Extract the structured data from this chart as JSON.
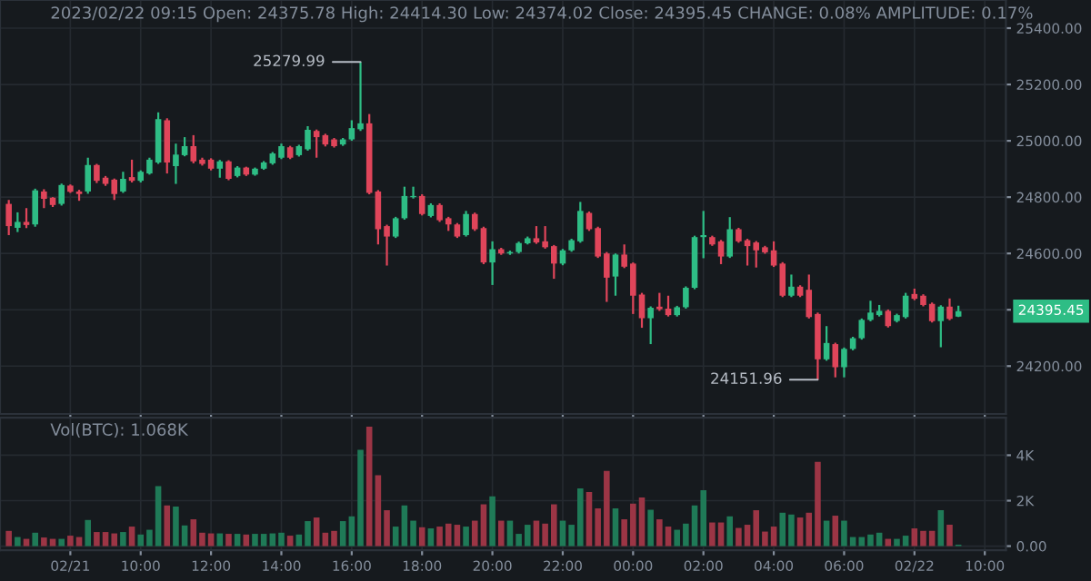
{
  "chart_data": [
    {
      "type": "candlestick",
      "title": "2023/02/22 09:15 Open: 24375.78 High: 24414.30 Low: 24374.02 Close: 24395.45 CHANGE: 0.08% AMPLITUDE: 0.17%",
      "x": [
        "2023-02-21T06:15",
        "2023-02-21T06:30",
        "2023-02-21T06:45",
        "2023-02-21T07:00",
        "2023-02-21T07:15",
        "2023-02-21T07:30",
        "2023-02-21T07:45",
        "2023-02-21T08:00",
        "2023-02-21T08:15",
        "2023-02-21T08:30",
        "2023-02-21T08:45",
        "2023-02-21T09:00",
        "2023-02-21T09:15",
        "2023-02-21T09:30",
        "2023-02-21T09:45",
        "2023-02-21T10:00",
        "2023-02-21T10:15",
        "2023-02-21T10:30",
        "2023-02-21T10:45",
        "2023-02-21T11:00",
        "2023-02-21T11:15",
        "2023-02-21T11:30",
        "2023-02-21T11:45",
        "2023-02-21T12:00",
        "2023-02-21T12:15",
        "2023-02-21T12:30",
        "2023-02-21T12:45",
        "2023-02-21T13:00",
        "2023-02-21T13:15",
        "2023-02-21T13:30",
        "2023-02-21T13:45",
        "2023-02-21T14:00",
        "2023-02-21T14:15",
        "2023-02-21T14:30",
        "2023-02-21T14:45",
        "2023-02-21T15:00",
        "2023-02-21T15:15",
        "2023-02-21T15:30",
        "2023-02-21T15:45",
        "2023-02-21T16:00",
        "2023-02-21T16:15",
        "2023-02-21T16:30",
        "2023-02-21T16:45",
        "2023-02-21T17:00",
        "2023-02-21T17:15",
        "2023-02-21T17:30",
        "2023-02-21T17:45",
        "2023-02-21T18:00",
        "2023-02-21T18:15",
        "2023-02-21T18:30",
        "2023-02-21T18:45",
        "2023-02-21T19:00",
        "2023-02-21T19:15",
        "2023-02-21T19:30",
        "2023-02-21T19:45",
        "2023-02-21T20:00",
        "2023-02-21T20:15",
        "2023-02-21T20:30",
        "2023-02-21T20:45",
        "2023-02-21T21:00",
        "2023-02-21T21:15",
        "2023-02-21T21:30",
        "2023-02-21T21:45",
        "2023-02-21T22:00",
        "2023-02-21T22:15",
        "2023-02-21T22:30",
        "2023-02-21T22:45",
        "2023-02-21T23:00",
        "2023-02-21T23:15",
        "2023-02-21T23:30",
        "2023-02-21T23:45",
        "2023-02-22T00:00",
        "2023-02-22T00:15",
        "2023-02-22T00:30",
        "2023-02-22T00:45",
        "2023-02-22T01:00",
        "2023-02-22T01:15",
        "2023-02-22T01:30",
        "2023-02-22T01:45",
        "2023-02-22T02:00",
        "2023-02-22T02:15",
        "2023-02-22T02:30",
        "2023-02-22T02:45",
        "2023-02-22T03:00",
        "2023-02-22T03:15",
        "2023-02-22T03:30",
        "2023-02-22T03:45",
        "2023-02-22T04:00",
        "2023-02-22T04:15",
        "2023-02-22T04:30",
        "2023-02-22T04:45",
        "2023-02-22T05:00",
        "2023-02-22T05:15",
        "2023-02-22T05:30",
        "2023-02-22T05:45",
        "2023-02-22T06:00",
        "2023-02-22T06:15",
        "2023-02-22T06:30",
        "2023-02-22T06:45",
        "2023-02-22T07:00",
        "2023-02-22T07:15",
        "2023-02-22T07:30",
        "2023-02-22T07:45",
        "2023-02-22T08:00",
        "2023-02-22T08:15",
        "2023-02-22T08:30",
        "2023-02-22T08:45",
        "2023-02-22T09:00",
        "2023-02-22T09:15"
      ],
      "ohlc": [
        [
          24776,
          24790,
          24665,
          24697
        ],
        [
          24691,
          24746,
          24676,
          24712
        ],
        [
          24712,
          24761,
          24690,
          24701
        ],
        [
          24703,
          24830,
          24695,
          24824
        ],
        [
          24820,
          24828,
          24761,
          24794
        ],
        [
          24798,
          24800,
          24765,
          24772
        ],
        [
          24776,
          24848,
          24770,
          24843
        ],
        [
          24841,
          24845,
          24815,
          24819
        ],
        [
          24820,
          24826,
          24787,
          24811
        ],
        [
          24820,
          24940,
          24812,
          24914
        ],
        [
          24914,
          24918,
          24850,
          24858
        ],
        [
          24869,
          24875,
          24840,
          24847
        ],
        [
          24862,
          24866,
          24790,
          24811
        ],
        [
          24820,
          24890,
          24815,
          24865
        ],
        [
          24871,
          24933,
          24852,
          24858
        ],
        [
          24858,
          24895,
          24852,
          24890
        ],
        [
          24884,
          24940,
          24880,
          24933
        ],
        [
          24923,
          25101,
          24918,
          25077
        ],
        [
          25073,
          25080,
          24884,
          24923
        ],
        [
          24910,
          24990,
          24847,
          24951
        ],
        [
          24949,
          25013,
          24945,
          24981
        ],
        [
          24981,
          25020,
          24920,
          24927
        ],
        [
          24933,
          24940,
          24912,
          24918
        ],
        [
          24933,
          24938,
          24895,
          24901
        ],
        [
          24901,
          24932,
          24869,
          24927
        ],
        [
          24927,
          24931,
          24860,
          24865
        ],
        [
          24875,
          24910,
          24870,
          24905
        ],
        [
          24905,
          24908,
          24875,
          24880
        ],
        [
          24880,
          24905,
          24876,
          24901
        ],
        [
          24901,
          24928,
          24897,
          24923
        ],
        [
          24920,
          24960,
          24915,
          24955
        ],
        [
          24940,
          24990,
          24935,
          24981
        ],
        [
          24977,
          24982,
          24935,
          24940
        ],
        [
          24949,
          24986,
          24944,
          24981
        ],
        [
          24970,
          25052,
          24965,
          25039
        ],
        [
          25035,
          25040,
          24940,
          25013
        ],
        [
          25020,
          25025,
          24980,
          24987
        ],
        [
          25005,
          25010,
          24976,
          24981
        ],
        [
          24987,
          25010,
          24982,
          25005
        ],
        [
          25005,
          25073,
          25000,
          25045
        ],
        [
          25041,
          25279.99,
          25035,
          25062
        ],
        [
          25062,
          25095,
          24810,
          24815
        ],
        [
          24820,
          24825,
          24632,
          24686
        ],
        [
          24697,
          24702,
          24557,
          24660
        ],
        [
          24660,
          24730,
          24655,
          24725
        ],
        [
          24725,
          24837,
          24720,
          24804
        ],
        [
          24800,
          24837,
          24795,
          24804
        ],
        [
          24804,
          24810,
          24735,
          24740
        ],
        [
          24733,
          24778,
          24728,
          24772
        ],
        [
          24772,
          24778,
          24712,
          24718
        ],
        [
          24725,
          24730,
          24680,
          24703
        ],
        [
          24703,
          24708,
          24655,
          24660
        ],
        [
          24665,
          24751,
          24660,
          24740
        ],
        [
          24740,
          24745,
          24680,
          24686
        ],
        [
          24690,
          24695,
          24562,
          24568
        ],
        [
          24568,
          24643,
          24488,
          24615
        ],
        [
          24615,
          24620,
          24595,
          24600
        ],
        [
          24600,
          24610,
          24595,
          24605
        ],
        [
          24605,
          24642,
          24600,
          24637
        ],
        [
          24636,
          24660,
          24632,
          24654
        ],
        [
          24654,
          24697,
          24634,
          24639
        ],
        [
          24643,
          24697,
          24617,
          24622
        ],
        [
          24626,
          24630,
          24510,
          24564
        ],
        [
          24564,
          24616,
          24558,
          24611
        ],
        [
          24611,
          24652,
          24606,
          24647
        ],
        [
          24643,
          24783,
          24638,
          24751
        ],
        [
          24744,
          24749,
          24680,
          24686
        ],
        [
          24690,
          24695,
          24584,
          24589
        ],
        [
          24600,
          24605,
          24428,
          24514
        ],
        [
          24518,
          24600,
          24450,
          24596
        ],
        [
          24596,
          24632,
          24548,
          24553
        ],
        [
          24564,
          24568,
          24385,
          24450
        ],
        [
          24454,
          24460,
          24336,
          24370
        ],
        [
          24370,
          24412,
          24278,
          24407
        ],
        [
          24411,
          24460,
          24396,
          24402
        ],
        [
          24404,
          24450,
          24376,
          24381
        ],
        [
          24381,
          24414,
          24376,
          24409
        ],
        [
          24409,
          24483,
          24404,
          24478
        ],
        [
          24478,
          24663,
          24473,
          24658
        ],
        [
          24658,
          24751,
          24583,
          24665
        ],
        [
          24658,
          24663,
          24627,
          24632
        ],
        [
          24643,
          24648,
          24562,
          24589
        ],
        [
          24589,
          24729,
          24584,
          24686
        ],
        [
          24686,
          24691,
          24638,
          24643
        ],
        [
          24647,
          24652,
          24557,
          24626
        ],
        [
          24639,
          24644,
          24550,
          24611
        ],
        [
          24622,
          24627,
          24599,
          24604
        ],
        [
          24611,
          24643,
          24552,
          24557
        ],
        [
          24564,
          24569,
          24445,
          24450
        ],
        [
          24450,
          24525,
          24445,
          24482
        ],
        [
          24482,
          24487,
          24445,
          24450
        ],
        [
          24471,
          24525,
          24369,
          24374
        ],
        [
          24385,
          24390,
          24151.96,
          24224
        ],
        [
          24224,
          24342,
          24219,
          24282
        ],
        [
          24278,
          24283,
          24160,
          24196
        ],
        [
          24196,
          24266,
          24160,
          24261
        ],
        [
          24261,
          24304,
          24256,
          24299
        ],
        [
          24299,
          24369,
          24294,
          24364
        ],
        [
          24364,
          24432,
          24359,
          24390
        ],
        [
          24381,
          24417,
          24376,
          24396
        ],
        [
          24396,
          24401,
          24337,
          24342
        ],
        [
          24360,
          24386,
          24355,
          24381
        ],
        [
          24374,
          24460,
          24369,
          24450
        ],
        [
          24456,
          24475,
          24434,
          24439
        ],
        [
          24450,
          24455,
          24412,
          24417
        ],
        [
          24421,
          24426,
          24355,
          24360
        ],
        [
          24360,
          24416,
          24267,
          24411
        ],
        [
          24411,
          24440,
          24363,
          24368
        ],
        [
          24375.78,
          24414.3,
          24374.02,
          24395.45
        ]
      ],
      "colors": [
        "#e0455a",
        "#2ebd85",
        "#e0455a",
        "#2ebd85",
        "#e0455a",
        "#e0455a",
        "#2ebd85",
        "#e0455a",
        "#e0455a",
        "#2ebd85",
        "#e0455a",
        "#e0455a",
        "#e0455a",
        "#2ebd85",
        "#e0455a",
        "#2ebd85",
        "#2ebd85",
        "#2ebd85",
        "#e0455a",
        "#2ebd85",
        "#2ebd85",
        "#e0455a",
        "#e0455a",
        "#e0455a",
        "#2ebd85",
        "#e0455a",
        "#2ebd85",
        "#e0455a",
        "#2ebd85",
        "#2ebd85",
        "#2ebd85",
        "#2ebd85",
        "#e0455a",
        "#2ebd85",
        "#2ebd85",
        "#e0455a",
        "#e0455a",
        "#e0455a",
        "#2ebd85",
        "#2ebd85",
        "#2ebd85",
        "#e0455a",
        "#e0455a",
        "#e0455a",
        "#2ebd85",
        "#2ebd85",
        "#2ebd85",
        "#e0455a",
        "#2ebd85",
        "#e0455a",
        "#e0455a",
        "#e0455a",
        "#2ebd85",
        "#e0455a",
        "#e0455a",
        "#2ebd85",
        "#e0455a",
        "#2ebd85",
        "#2ebd85",
        "#2ebd85",
        "#e0455a",
        "#e0455a",
        "#e0455a",
        "#2ebd85",
        "#2ebd85",
        "#2ebd85",
        "#e0455a",
        "#e0455a",
        "#e0455a",
        "#2ebd85",
        "#e0455a",
        "#e0455a",
        "#e0455a",
        "#2ebd85",
        "#e0455a",
        "#e0455a",
        "#2ebd85",
        "#2ebd85",
        "#2ebd85",
        "#2ebd85",
        "#e0455a",
        "#e0455a",
        "#2ebd85",
        "#e0455a",
        "#e0455a",
        "#e0455a",
        "#e0455a",
        "#e0455a",
        "#e0455a",
        "#2ebd85",
        "#e0455a",
        "#e0455a",
        "#e0455a",
        "#2ebd85",
        "#e0455a",
        "#2ebd85",
        "#2ebd85",
        "#2ebd85",
        "#2ebd85",
        "#2ebd85",
        "#e0455a",
        "#2ebd85",
        "#2ebd85",
        "#e0455a",
        "#e0455a",
        "#e0455a",
        "#2ebd85",
        "#e0455a",
        "#2ebd85"
      ],
      "annotations": [
        {
          "text": "25279.99",
          "x": "2023-02-21T16:15",
          "y": 25279.99
        },
        {
          "text": "24151.96",
          "x": "2023-02-22T05:15",
          "y": 24151.96
        },
        "24395.45"
      ],
      "xlim": [
        "2023-02-21T06:00",
        "2023-02-22T10:36"
      ],
      "xticks": [
        {
          "value": "2023-02-21T08:00",
          "label": null
        },
        {
          "value": "2023-02-21T10:00",
          "label": null
        },
        {
          "value": "2023-02-21T12:00",
          "label": null
        },
        {
          "value": "2023-02-21T14:00",
          "label": null
        },
        {
          "value": "2023-02-21T16:00",
          "label": null
        },
        {
          "value": "2023-02-21T18:00",
          "label": null
        },
        {
          "value": "2023-02-21T20:00",
          "label": null
        },
        {
          "value": "2023-02-21T22:00",
          "label": null
        },
        {
          "value": "2023-02-22T00:00",
          "label": null
        },
        {
          "value": "2023-02-22T02:00",
          "label": null
        },
        {
          "value": "2023-02-22T04:00",
          "label": null
        },
        {
          "value": "2023-02-22T06:00",
          "label": null
        },
        {
          "value": "2023-02-22T08:00",
          "label": null
        },
        {
          "value": "2023-02-22T10:00",
          "label": null
        }
      ],
      "ylim": [
        24030,
        25500
      ],
      "yticks": [
        {
          "value": 24200,
          "label": "24200.00"
        },
        {
          "value": 24400,
          "label": null
        },
        {
          "value": 24600,
          "label": "24600.00"
        },
        {
          "value": 24800,
          "label": "24800.00"
        },
        {
          "value": 25000,
          "label": "25000.00"
        },
        {
          "value": 25200,
          "label": "25200.00"
        },
        {
          "value": 25400,
          "label": "25400.00"
        }
      ],
      "grid": true,
      "tick_labels": "y"
    },
    {
      "type": "bar",
      "title": "Vol(BTC): 1.068K",
      "x": [
        "2023-02-21T06:15",
        "2023-02-21T06:30",
        "2023-02-21T06:45",
        "2023-02-21T07:00",
        "2023-02-21T07:15",
        "2023-02-21T07:30",
        "2023-02-21T07:45",
        "2023-02-21T08:00",
        "2023-02-21T08:15",
        "2023-02-21T08:30",
        "2023-02-21T08:45",
        "2023-02-21T09:00",
        "2023-02-21T09:15",
        "2023-02-21T09:30",
        "2023-02-21T09:45",
        "2023-02-21T10:00",
        "2023-02-21T10:15",
        "2023-02-21T10:30",
        "2023-02-21T10:45",
        "2023-02-21T11:00",
        "2023-02-21T11:15",
        "2023-02-21T11:30",
        "2023-02-21T11:45",
        "2023-02-21T12:00",
        "2023-02-21T12:15",
        "2023-02-21T12:30",
        "2023-02-21T12:45",
        "2023-02-21T13:00",
        "2023-02-21T13:15",
        "2023-02-21T13:30",
        "2023-02-21T13:45",
        "2023-02-21T14:00",
        "2023-02-21T14:15",
        "2023-02-21T14:30",
        "2023-02-21T14:45",
        "2023-02-21T15:00",
        "2023-02-21T15:15",
        "2023-02-21T15:30",
        "2023-02-21T15:45",
        "2023-02-21T16:00",
        "2023-02-21T16:15",
        "2023-02-21T16:30",
        "2023-02-21T16:45",
        "2023-02-21T17:00",
        "2023-02-21T17:15",
        "2023-02-21T17:30",
        "2023-02-21T17:45",
        "2023-02-21T18:00",
        "2023-02-21T18:15",
        "2023-02-21T18:30",
        "2023-02-21T18:45",
        "2023-02-21T19:00",
        "2023-02-21T19:15",
        "2023-02-21T19:30",
        "2023-02-21T19:45",
        "2023-02-21T20:00",
        "2023-02-21T20:15",
        "2023-02-21T20:30",
        "2023-02-21T20:45",
        "2023-02-21T21:00",
        "2023-02-21T21:15",
        "2023-02-21T21:30",
        "2023-02-21T21:45",
        "2023-02-21T22:00",
        "2023-02-21T22:15",
        "2023-02-21T22:30",
        "2023-02-21T22:45",
        "2023-02-21T23:00",
        "2023-02-21T23:15",
        "2023-02-21T23:30",
        "2023-02-21T23:45",
        "2023-02-22T00:00",
        "2023-02-22T00:15",
        "2023-02-22T00:30",
        "2023-02-22T00:45",
        "2023-02-22T01:00",
        "2023-02-22T01:15",
        "2023-02-22T01:30",
        "2023-02-22T01:45",
        "2023-02-22T02:00",
        "2023-02-22T02:15",
        "2023-02-22T02:30",
        "2023-02-22T02:45",
        "2023-02-22T03:00",
        "2023-02-22T03:15",
        "2023-02-22T03:30",
        "2023-02-22T03:45",
        "2023-02-22T04:00",
        "2023-02-22T04:15",
        "2023-02-22T04:30",
        "2023-02-22T04:45",
        "2023-02-22T05:00",
        "2023-02-22T05:15",
        "2023-02-22T05:30",
        "2023-02-22T05:45",
        "2023-02-22T06:00",
        "2023-02-22T06:15",
        "2023-02-22T06:30",
        "2023-02-22T06:45",
        "2023-02-22T07:00",
        "2023-02-22T07:15",
        "2023-02-22T07:30",
        "2023-02-22T07:45",
        "2023-02-22T08:00",
        "2023-02-22T08:15",
        "2023-02-22T08:30",
        "2023-02-22T08:45",
        "2023-02-22T09:00",
        "2023-02-22T09:15"
      ],
      "values": [
        670,
        400,
        320,
        590,
        380,
        320,
        320,
        460,
        400,
        1150,
        620,
        620,
        560,
        620,
        860,
        510,
        720,
        2640,
        1790,
        1740,
        910,
        1180,
        590,
        560,
        560,
        540,
        540,
        510,
        540,
        540,
        560,
        590,
        460,
        510,
        1100,
        1260,
        590,
        670,
        1100,
        1310,
        4240,
        5260,
        3120,
        1580,
        860,
        1790,
        1120,
        830,
        780,
        860,
        990,
        940,
        860,
        1120,
        1840,
        2190,
        1120,
        1120,
        540,
        940,
        1120,
        990,
        1840,
        1120,
        940,
        2540,
        2380,
        1660,
        3310,
        1660,
        1180,
        1870,
        2140,
        1600,
        1180,
        860,
        720,
        990,
        1790,
        2460,
        1040,
        1040,
        1310,
        800,
        940,
        1580,
        640,
        860,
        1470,
        1390,
        1260,
        1470,
        3710,
        1120,
        1340,
        1120,
        400,
        400,
        510,
        590,
        320,
        320,
        460,
        780,
        670,
        670,
        1580,
        940,
        60
      ],
      "colors": [
        "#9c3545",
        "#1f7a57",
        "#9c3545",
        "#1f7a57",
        "#9c3545",
        "#9c3545",
        "#1f7a57",
        "#9c3545",
        "#9c3545",
        "#1f7a57",
        "#9c3545",
        "#9c3545",
        "#9c3545",
        "#1f7a57",
        "#9c3545",
        "#1f7a57",
        "#1f7a57",
        "#1f7a57",
        "#9c3545",
        "#1f7a57",
        "#1f7a57",
        "#9c3545",
        "#9c3545",
        "#9c3545",
        "#1f7a57",
        "#9c3545",
        "#1f7a57",
        "#9c3545",
        "#1f7a57",
        "#1f7a57",
        "#1f7a57",
        "#1f7a57",
        "#9c3545",
        "#1f7a57",
        "#1f7a57",
        "#9c3545",
        "#9c3545",
        "#9c3545",
        "#1f7a57",
        "#1f7a57",
        "#1f7a57",
        "#9c3545",
        "#9c3545",
        "#9c3545",
        "#1f7a57",
        "#1f7a57",
        "#1f7a57",
        "#9c3545",
        "#1f7a57",
        "#9c3545",
        "#9c3545",
        "#9c3545",
        "#1f7a57",
        "#9c3545",
        "#9c3545",
        "#1f7a57",
        "#9c3545",
        "#1f7a57",
        "#1f7a57",
        "#1f7a57",
        "#9c3545",
        "#9c3545",
        "#9c3545",
        "#1f7a57",
        "#1f7a57",
        "#1f7a57",
        "#9c3545",
        "#9c3545",
        "#9c3545",
        "#1f7a57",
        "#9c3545",
        "#9c3545",
        "#9c3545",
        "#1f7a57",
        "#9c3545",
        "#9c3545",
        "#1f7a57",
        "#1f7a57",
        "#1f7a57",
        "#1f7a57",
        "#9c3545",
        "#9c3545",
        "#1f7a57",
        "#9c3545",
        "#9c3545",
        "#9c3545",
        "#9c3545",
        "#9c3545",
        "#1f7a57",
        "#1f7a57",
        "#9c3545",
        "#9c3545",
        "#9c3545",
        "#1f7a57",
        "#9c3545",
        "#1f7a57",
        "#1f7a57",
        "#1f7a57",
        "#1f7a57",
        "#1f7a57",
        "#9c3545",
        "#1f7a57",
        "#1f7a57",
        "#9c3545",
        "#9c3545",
        "#9c3545",
        "#1f7a57",
        "#9c3545",
        "#1f7a57"
      ],
      "xlim": [
        "2023-02-21T06:00",
        "2023-02-22T10:36"
      ],
      "xticks": [
        {
          "value": "2023-02-21T08:00",
          "label": "02/21"
        },
        {
          "value": "2023-02-21T10:00",
          "label": "10:00"
        },
        {
          "value": "2023-02-21T12:00",
          "label": "12:00"
        },
        {
          "value": "2023-02-21T14:00",
          "label": "14:00"
        },
        {
          "value": "2023-02-21T16:00",
          "label": "16:00"
        },
        {
          "value": "2023-02-21T18:00",
          "label": "18:00"
        },
        {
          "value": "2023-02-21T20:00",
          "label": "20:00"
        },
        {
          "value": "2023-02-21T22:00",
          "label": "22:00"
        },
        {
          "value": "2023-02-22T00:00",
          "label": "00:00"
        },
        {
          "value": "2023-02-22T02:00",
          "label": "02:00"
        },
        {
          "value": "2023-02-22T04:00",
          "label": "04:00"
        },
        {
          "value": "2023-02-22T06:00",
          "label": "06:00"
        },
        {
          "value": "2023-02-22T08:00",
          "label": "02/22"
        },
        {
          "value": "2023-02-22T10:00",
          "label": "10:00"
        }
      ],
      "ylim": [
        -180,
        5650
      ],
      "yticks": [
        {
          "value": 0,
          "label": "0.00"
        },
        {
          "value": 2000,
          "label": "2K"
        },
        {
          "value": 4000,
          "label": "4K"
        }
      ],
      "grid": true
    }
  ]
}
